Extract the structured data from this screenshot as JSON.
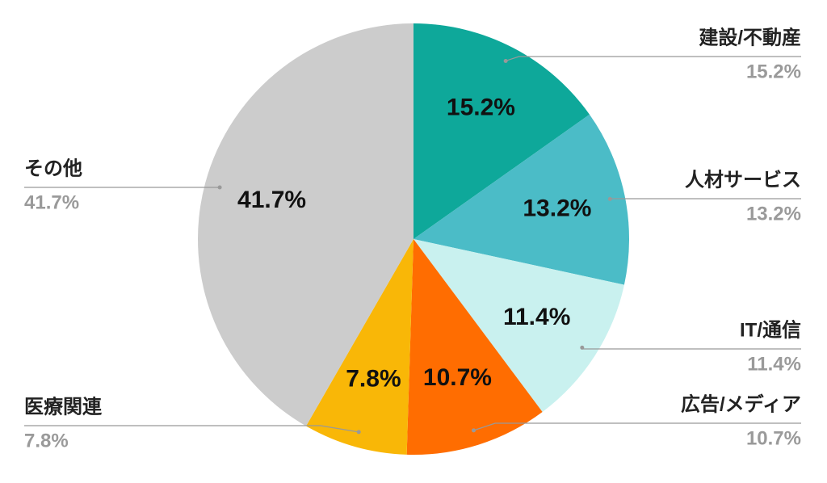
{
  "chart_data": {
    "type": "pie",
    "categories": [
      "建設/不動産",
      "人材サービス",
      "IT/通信",
      "広告/メディア",
      "医療関連",
      "その他"
    ],
    "values": [
      15.2,
      13.2,
      11.4,
      10.7,
      7.8,
      41.7
    ],
    "value_labels": [
      "15.2%",
      "13.2%",
      "11.4%",
      "10.7%",
      "7.8%",
      "41.7%"
    ],
    "colors": [
      "#0ea89a",
      "#4bbcc7",
      "#c9f1ef",
      "#ff6d01",
      "#f9b707",
      "#cccccc"
    ]
  }
}
